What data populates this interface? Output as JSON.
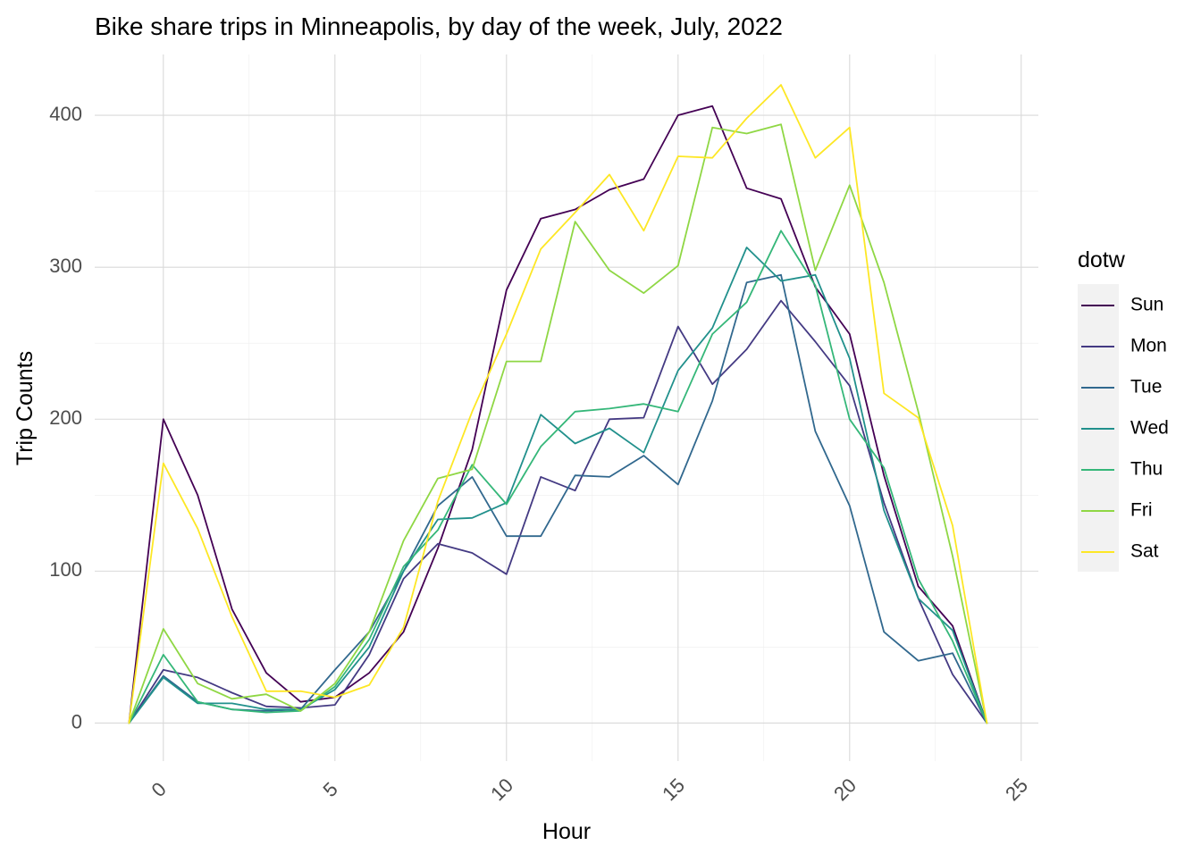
{
  "chart_data": {
    "type": "line",
    "title": "Bike share trips in Minneapolis, by day of the week, July, 2022",
    "xlabel": "Hour",
    "ylabel": "Trip Counts",
    "xlim": [
      -2,
      25.5
    ],
    "ylim": [
      -25,
      440
    ],
    "xticks": [
      0,
      5,
      10,
      15,
      20,
      25
    ],
    "yticks": [
      0,
      100,
      200,
      300,
      400
    ],
    "grid": true,
    "legend": {
      "title": "dotw",
      "position": "right"
    },
    "x": [
      -1,
      0,
      1,
      2,
      3,
      4,
      5,
      6,
      7,
      8,
      9,
      10,
      11,
      12,
      13,
      14,
      15,
      16,
      17,
      18,
      19,
      20,
      21,
      22,
      23,
      24
    ],
    "series": [
      {
        "name": "Sun",
        "color": "#440154",
        "values": [
          0,
          200,
          150,
          75,
          33,
          14,
          17,
          33,
          60,
          115,
          180,
          285,
          332,
          338,
          351,
          358,
          400,
          406,
          352,
          345,
          287,
          256,
          163,
          90,
          64,
          0
        ]
      },
      {
        "name": "Mon",
        "color": "#443A83",
        "values": [
          0,
          35,
          30,
          20,
          11,
          10,
          12,
          45,
          95,
          118,
          112,
          98,
          162,
          153,
          200,
          201,
          261,
          223,
          246,
          278,
          251,
          222,
          145,
          82,
          32,
          0
        ]
      },
      {
        "name": "Tue",
        "color": "#31688E",
        "values": [
          0,
          31,
          14,
          9,
          8,
          9,
          35,
          60,
          100,
          143,
          162,
          123,
          123,
          163,
          162,
          176,
          157,
          212,
          290,
          295,
          192,
          143,
          60,
          41,
          46,
          0
        ]
      },
      {
        "name": "Wed",
        "color": "#21908C",
        "values": [
          0,
          30,
          13,
          13,
          9,
          9,
          22,
          50,
          100,
          134,
          135,
          145,
          203,
          184,
          194,
          178,
          232,
          260,
          313,
          291,
          295,
          240,
          140,
          82,
          61,
          0
        ]
      },
      {
        "name": "Thu",
        "color": "#35B779",
        "values": [
          0,
          45,
          14,
          9,
          7,
          8,
          24,
          55,
          103,
          127,
          170,
          144,
          182,
          205,
          207,
          210,
          205,
          256,
          277,
          324,
          288,
          200,
          168,
          95,
          54,
          0
        ]
      },
      {
        "name": "Fri",
        "color": "#8FD744",
        "values": [
          0,
          62,
          26,
          16,
          19,
          8,
          26,
          60,
          120,
          161,
          167,
          238,
          238,
          330,
          298,
          283,
          301,
          392,
          388,
          394,
          298,
          354,
          290,
          205,
          110,
          0
        ]
      },
      {
        "name": "Sat",
        "color": "#FDE725",
        "values": [
          0,
          171,
          128,
          70,
          21,
          21,
          17,
          25,
          63,
          146,
          205,
          256,
          312,
          336,
          361,
          324,
          373,
          372,
          398,
          420,
          372,
          392,
          217,
          201,
          130,
          0
        ]
      }
    ]
  }
}
